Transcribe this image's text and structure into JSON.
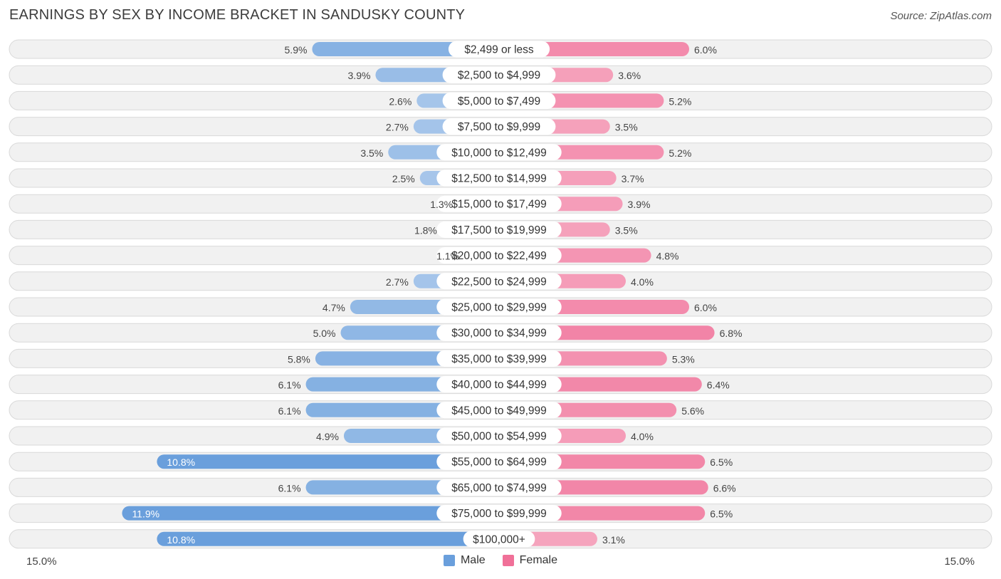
{
  "title": "EARNINGS BY SEX BY INCOME BRACKET IN SANDUSKY COUNTY",
  "source": "Source: ZipAtlas.com",
  "colors": {
    "male": "#6a9fdc",
    "female": "#f07098"
  },
  "chart_data": {
    "type": "bar",
    "orientation": "horizontal-diverging",
    "title": "EARNINGS BY SEX BY INCOME BRACKET IN SANDUSKY COUNTY",
    "xlim": [
      0,
      15.0
    ],
    "axis_min_label": "15.0%",
    "axis_max_label": "15.0%",
    "legend": [
      "Male",
      "Female"
    ],
    "categories": [
      "$2,499 or less",
      "$2,500 to $4,999",
      "$5,000 to $7,499",
      "$7,500 to $9,999",
      "$10,000 to $12,499",
      "$12,500 to $14,999",
      "$15,000 to $17,499",
      "$17,500 to $19,999",
      "$20,000 to $22,499",
      "$22,500 to $24,999",
      "$25,000 to $29,999",
      "$30,000 to $34,999",
      "$35,000 to $39,999",
      "$40,000 to $44,999",
      "$45,000 to $49,999",
      "$50,000 to $54,999",
      "$55,000 to $64,999",
      "$65,000 to $74,999",
      "$75,000 to $99,999",
      "$100,000+"
    ],
    "series": [
      {
        "name": "Male",
        "values": [
          5.9,
          3.9,
          2.6,
          2.7,
          3.5,
          2.5,
          1.3,
          1.8,
          1.1,
          2.7,
          4.7,
          5.0,
          5.8,
          6.1,
          6.1,
          4.9,
          10.8,
          6.1,
          11.9,
          10.8
        ]
      },
      {
        "name": "Female",
        "values": [
          6.0,
          3.6,
          5.2,
          3.5,
          5.2,
          3.7,
          3.9,
          3.5,
          4.8,
          4.0,
          6.0,
          6.8,
          5.3,
          6.4,
          5.6,
          4.0,
          6.5,
          6.6,
          6.5,
          3.1
        ]
      }
    ]
  }
}
